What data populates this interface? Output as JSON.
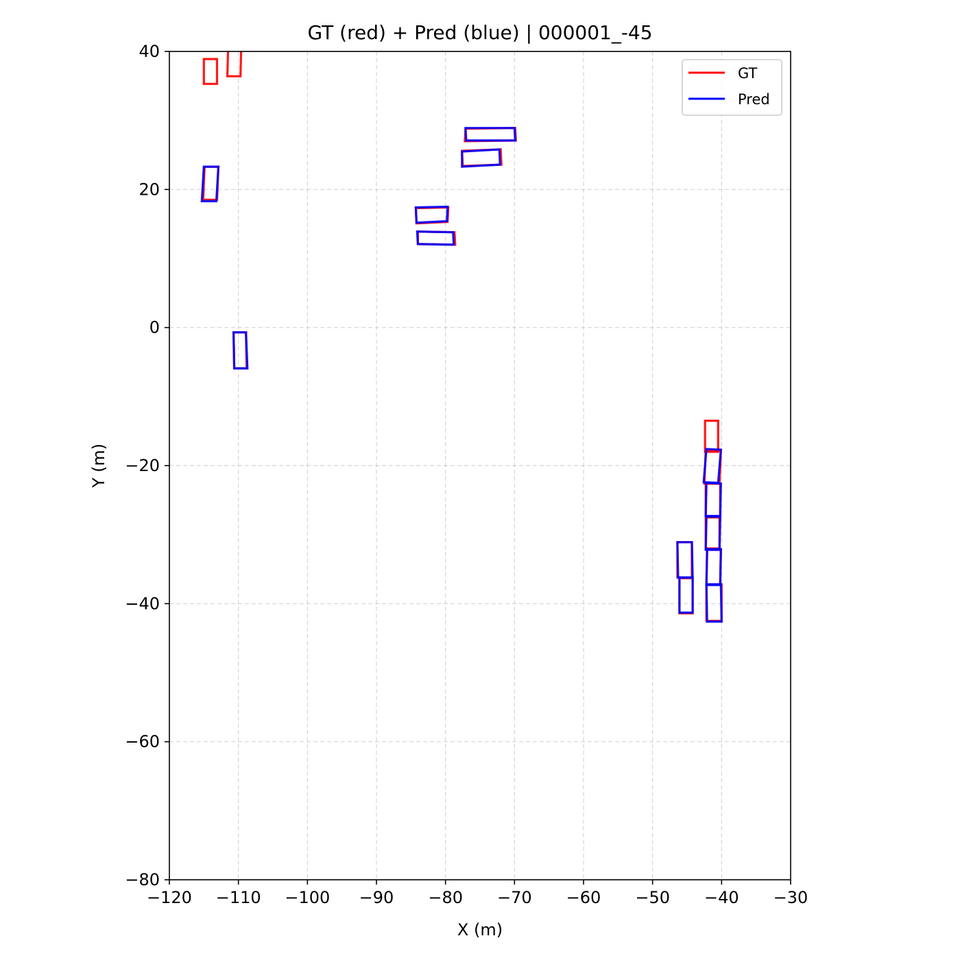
{
  "chart_data": {
    "type": "box-plot-2d",
    "title": "GT (red) + Pred (blue) | 000001_-45",
    "xlabel": "X (m)",
    "ylabel": "Y (m)",
    "xlim": [
      -120,
      -30
    ],
    "ylim": [
      -80,
      40
    ],
    "xticks": [
      -120,
      -110,
      -100,
      -90,
      -80,
      -70,
      -60,
      -50,
      -40,
      -30
    ],
    "yticks": [
      -80,
      -60,
      -40,
      -20,
      0,
      20,
      40
    ],
    "xtick_labels": [
      "−120",
      "−110",
      "−100",
      "−90",
      "−80",
      "−70",
      "−60",
      "−50",
      "−40",
      "−30"
    ],
    "ytick_labels": [
      "−80",
      "−60",
      "−40",
      "−20",
      "0",
      "20",
      "40"
    ],
    "grid": true,
    "legend_position": "top-right",
    "colors": {
      "gt": "#ff0000",
      "pred": "#0000ff"
    },
    "series": [
      {
        "name": "GT",
        "color": "#ff0000",
        "boxes": [
          [
            [
              -115.0,
              38.9
            ],
            [
              -113.1,
              38.9
            ],
            [
              -113.1,
              35.3
            ],
            [
              -115.0,
              35.3
            ]
          ],
          [
            [
              -111.5,
              40.2
            ],
            [
              -109.6,
              40.2
            ],
            [
              -109.7,
              36.4
            ],
            [
              -111.6,
              36.4
            ]
          ],
          [
            [
              -114.9,
              23.3
            ],
            [
              -112.9,
              23.3
            ],
            [
              -113.1,
              18.5
            ],
            [
              -115.1,
              18.5
            ]
          ],
          [
            [
              -110.7,
              -0.7
            ],
            [
              -108.9,
              -0.7
            ],
            [
              -108.8,
              -5.9
            ],
            [
              -110.6,
              -5.9
            ]
          ],
          [
            [
              -84.3,
              17.3
            ],
            [
              -79.6,
              17.4
            ],
            [
              -79.7,
              15.3
            ],
            [
              -84.2,
              15.1
            ]
          ],
          [
            [
              -84.0,
              13.9
            ],
            [
              -78.7,
              13.8
            ],
            [
              -78.6,
              12.0
            ],
            [
              -84.0,
              12.1
            ]
          ],
          [
            [
              -77.1,
              28.8
            ],
            [
              -69.9,
              28.9
            ],
            [
              -69.8,
              27.1
            ],
            [
              -77.2,
              27.0
            ]
          ],
          [
            [
              -77.6,
              25.6
            ],
            [
              -72.0,
              25.8
            ],
            [
              -71.9,
              23.6
            ],
            [
              -77.5,
              23.4
            ]
          ],
          [
            [
              -42.4,
              -13.5
            ],
            [
              -40.5,
              -13.5
            ],
            [
              -40.5,
              -18.0
            ],
            [
              -42.4,
              -18.0
            ]
          ],
          [
            [
              -42.3,
              -17.8
            ],
            [
              -40.1,
              -17.8
            ],
            [
              -40.3,
              -22.6
            ],
            [
              -42.5,
              -22.6
            ]
          ],
          [
            [
              -42.3,
              -22.6
            ],
            [
              -40.2,
              -22.6
            ],
            [
              -40.2,
              -27.4
            ],
            [
              -42.3,
              -27.4
            ]
          ],
          [
            [
              -42.3,
              -27.5
            ],
            [
              -40.3,
              -27.5
            ],
            [
              -40.3,
              -32.0
            ],
            [
              -42.3,
              -32.0
            ]
          ],
          [
            [
              -42.1,
              -32.2
            ],
            [
              -40.1,
              -32.2
            ],
            [
              -40.2,
              -37.2
            ],
            [
              -42.2,
              -37.2
            ]
          ],
          [
            [
              -42.2,
              -37.2
            ],
            [
              -40.0,
              -37.2
            ],
            [
              -40.0,
              -42.5
            ],
            [
              -42.2,
              -42.5
            ]
          ],
          [
            [
              -46.4,
              -31.1
            ],
            [
              -44.3,
              -31.1
            ],
            [
              -44.3,
              -36.2
            ],
            [
              -46.4,
              -36.2
            ]
          ],
          [
            [
              -46.1,
              -36.3
            ],
            [
              -44.2,
              -36.3
            ],
            [
              -44.2,
              -41.4
            ],
            [
              -46.1,
              -41.4
            ]
          ]
        ]
      },
      {
        "name": "Pred",
        "color": "#0000ff",
        "boxes": [
          [
            [
              -115.0,
              23.3
            ],
            [
              -112.9,
              23.3
            ],
            [
              -113.2,
              18.3
            ],
            [
              -115.3,
              18.3
            ]
          ],
          [
            [
              -110.7,
              -0.7
            ],
            [
              -108.9,
              -0.7
            ],
            [
              -108.7,
              -5.9
            ],
            [
              -110.6,
              -5.9
            ]
          ],
          [
            [
              -84.3,
              17.4
            ],
            [
              -79.7,
              17.5
            ],
            [
              -79.8,
              15.4
            ],
            [
              -84.2,
              15.2
            ]
          ],
          [
            [
              -84.1,
              13.9
            ],
            [
              -78.9,
              13.8
            ],
            [
              -78.8,
              12.0
            ],
            [
              -84.0,
              12.1
            ]
          ],
          [
            [
              -77.1,
              28.9
            ],
            [
              -70.0,
              28.9
            ],
            [
              -69.9,
              27.1
            ],
            [
              -77.0,
              27.1
            ]
          ],
          [
            [
              -77.6,
              25.5
            ],
            [
              -72.2,
              25.8
            ],
            [
              -72.1,
              23.6
            ],
            [
              -77.6,
              23.3
            ]
          ],
          [
            [
              -42.2,
              -17.6
            ],
            [
              -40.1,
              -17.7
            ],
            [
              -40.5,
              -22.5
            ],
            [
              -42.6,
              -22.4
            ]
          ],
          [
            [
              -42.2,
              -22.5
            ],
            [
              -40.1,
              -22.6
            ],
            [
              -40.2,
              -27.3
            ],
            [
              -42.3,
              -27.3
            ]
          ],
          [
            [
              -42.2,
              -27.4
            ],
            [
              -40.2,
              -27.4
            ],
            [
              -40.3,
              -32.2
            ],
            [
              -42.3,
              -32.2
            ]
          ],
          [
            [
              -42.1,
              -32.1
            ],
            [
              -40.1,
              -32.1
            ],
            [
              -40.2,
              -37.3
            ],
            [
              -42.2,
              -37.3
            ]
          ],
          [
            [
              -42.2,
              -37.2
            ],
            [
              -40.1,
              -37.2
            ],
            [
              -40.0,
              -42.6
            ],
            [
              -42.1,
              -42.6
            ]
          ],
          [
            [
              -46.4,
              -31.1
            ],
            [
              -44.3,
              -31.1
            ],
            [
              -44.2,
              -36.2
            ],
            [
              -46.3,
              -36.2
            ]
          ],
          [
            [
              -46.1,
              -36.2
            ],
            [
              -44.2,
              -36.2
            ],
            [
              -44.2,
              -41.3
            ],
            [
              -46.1,
              -41.3
            ]
          ]
        ]
      }
    ]
  }
}
